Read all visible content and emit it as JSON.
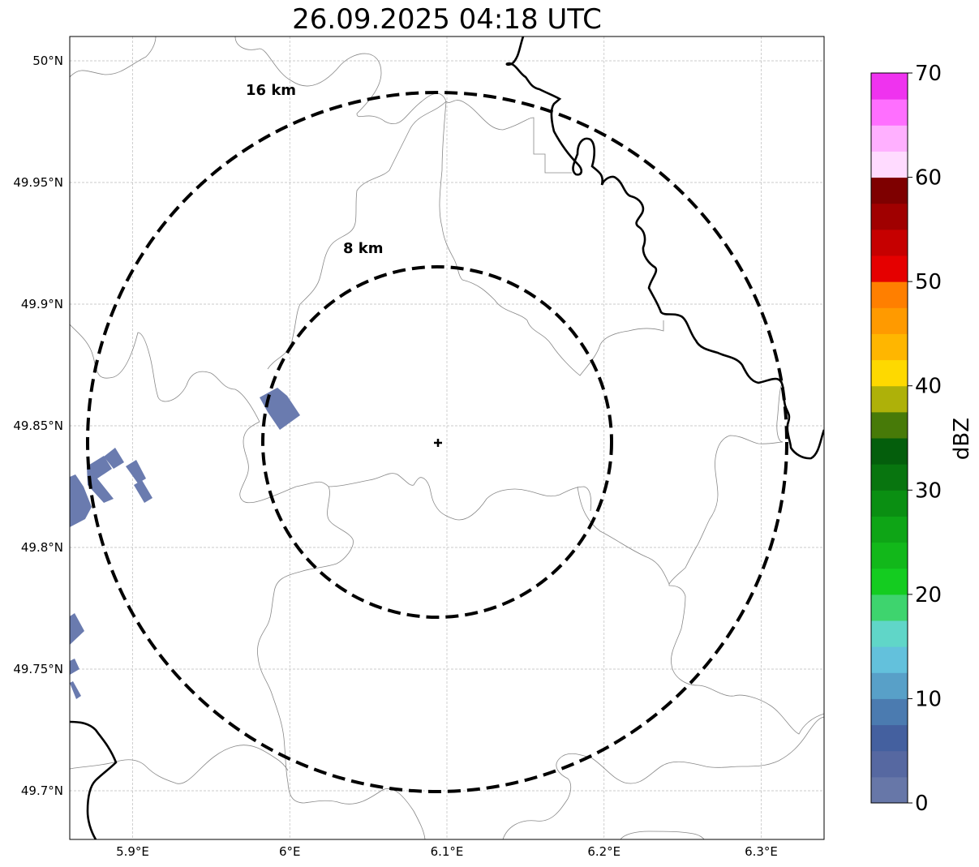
{
  "title": "26.09.2025 04:18 UTC",
  "map": {
    "lon_range": [
      5.86,
      6.34
    ],
    "lat_range": [
      49.68,
      50.01
    ],
    "radar_site": {
      "lon": 6.095,
      "lat": 49.843
    },
    "lon_ticks": [
      {
        "value": 5.9,
        "label": "5.9°E"
      },
      {
        "value": 6.0,
        "label": "6°E"
      },
      {
        "value": 6.1,
        "label": "6.1°E"
      },
      {
        "value": 6.2,
        "label": "6.2°E"
      },
      {
        "value": 6.3,
        "label": "6.3°E"
      }
    ],
    "lat_ticks": [
      {
        "value": 50.0,
        "label": "50°N"
      },
      {
        "value": 49.95,
        "label": "49.95°N"
      },
      {
        "value": 49.9,
        "label": "49.9°N"
      },
      {
        "value": 49.85,
        "label": "49.85°N"
      },
      {
        "value": 49.8,
        "label": "49.8°N"
      },
      {
        "value": 49.75,
        "label": "49.75°N"
      },
      {
        "value": 49.7,
        "label": "49.7°N"
      }
    ],
    "range_rings": [
      {
        "radius_km": 8,
        "label": "8 km"
      },
      {
        "radius_km": 16,
        "label": "16 km"
      }
    ],
    "grid": true
  },
  "colorbar": {
    "label": "dBZ",
    "min": 0,
    "max": 70,
    "ticks": [
      "0",
      "10",
      "20",
      "30",
      "40",
      "50",
      "60",
      "70"
    ],
    "colors": [
      "#6777a8",
      "#5668a1",
      "#44609f",
      "#4b7bb0",
      "#58a0c8",
      "#63c1dc",
      "#60d6c8",
      "#3ed46e",
      "#14cc20",
      "#12b81a",
      "#0ea516",
      "#0a8f12",
      "#08750f",
      "#045e0c",
      "#477a08",
      "#aeb109",
      "#fed900",
      "#ffb600",
      "#ff9a00",
      "#ff7f00",
      "#e50000",
      "#c60000",
      "#a00000",
      "#7e0000",
      "#ffdbff",
      "#ffb0ff",
      "#ff6fff",
      "#ef33ef"
    ]
  }
}
